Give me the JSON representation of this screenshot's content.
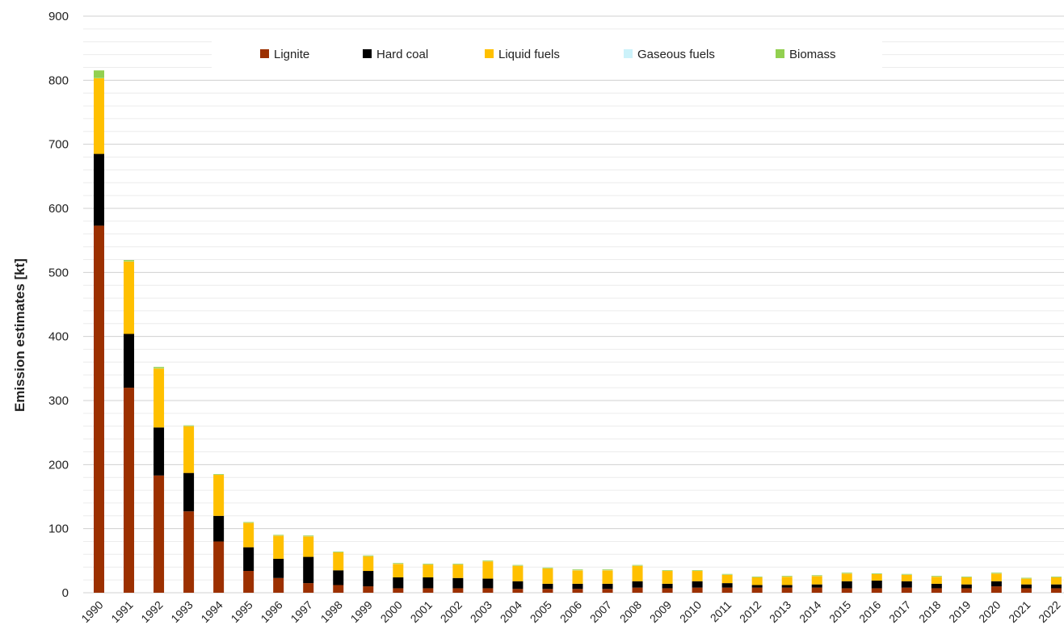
{
  "chart_data": {
    "type": "bar",
    "stacked": true,
    "title": "",
    "xlabel": "",
    "ylabel": "Emission estimates [kt]",
    "ylim": [
      0,
      900
    ],
    "yticks": [
      0,
      100,
      200,
      300,
      400,
      500,
      600,
      700,
      800,
      900
    ],
    "minor_grid_step": 20,
    "grid": true,
    "legend_position": "top-center",
    "categories": [
      "1990",
      "1991",
      "1992",
      "1993",
      "1994",
      "1995",
      "1996",
      "1997",
      "1998",
      "1999",
      "2000",
      "2001",
      "2002",
      "2003",
      "2004",
      "2005",
      "2006",
      "2007",
      "2008",
      "2009",
      "2010",
      "2011",
      "2012",
      "2013",
      "2014",
      "2015",
      "2016",
      "2017",
      "2018",
      "2019",
      "2020",
      "2021",
      "2022"
    ],
    "series": [
      {
        "name": "Lignite",
        "color": "#9C3000",
        "values": [
          573,
          320,
          183,
          127,
          80,
          34,
          23,
          15,
          12,
          10,
          7,
          7,
          7,
          7,
          6,
          6,
          6,
          6,
          8,
          7,
          8,
          8,
          8,
          8,
          8,
          7,
          7,
          8,
          7,
          7,
          10,
          7,
          7
        ]
      },
      {
        "name": "Hard coal",
        "color": "#000000",
        "values": [
          112,
          84,
          75,
          60,
          40,
          37,
          30,
          41,
          23,
          24,
          17,
          17,
          16,
          15,
          12,
          8,
          8,
          8,
          10,
          7,
          10,
          7,
          4,
          4,
          5,
          11,
          12,
          10,
          7,
          6,
          8,
          6,
          6
        ]
      },
      {
        "name": "Liquid fuels",
        "color": "#FFC000",
        "values": [
          118,
          113,
          92,
          73,
          64,
          38,
          36,
          32,
          28,
          23,
          21,
          20,
          21,
          27,
          24,
          24,
          21,
          21,
          24,
          20,
          16,
          13,
          12,
          13,
          13,
          12,
          10,
          10,
          11,
          11,
          12,
          9,
          11
        ]
      },
      {
        "name": "Gaseous fuels",
        "color": "#CCF2FA",
        "values": [
          0.3,
          0.3,
          0.3,
          0.3,
          0.3,
          0.3,
          0.3,
          0.3,
          0.3,
          0.3,
          0.3,
          0.3,
          0.3,
          0.3,
          0.3,
          0.3,
          0.3,
          0.3,
          0.3,
          0.3,
          0.3,
          0.3,
          0.3,
          0.3,
          0.3,
          0.3,
          0.3,
          0.3,
          0.3,
          0.3,
          0.3,
          0.3,
          0.3
        ]
      },
      {
        "name": "Biomass",
        "color": "#92D050",
        "values": [
          12,
          2,
          2,
          1,
          1,
          1,
          1,
          1,
          1,
          1,
          1,
          1,
          1,
          1,
          1,
          1,
          1,
          1,
          1,
          1,
          1,
          1,
          1,
          1,
          1,
          1,
          1,
          1,
          1,
          1,
          1,
          1,
          1
        ]
      }
    ]
  }
}
